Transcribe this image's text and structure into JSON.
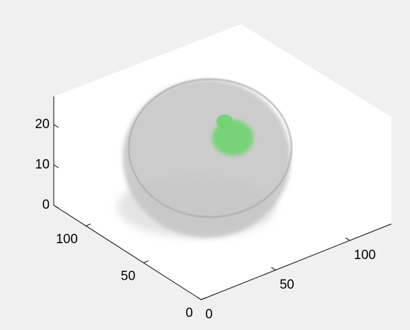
{
  "chart_data": {
    "type": "volume3d",
    "xlim": [
      0,
      128
    ],
    "xticks": [
      0,
      50,
      100
    ],
    "ylim": [
      0,
      128
    ],
    "yticks": [
      0,
      50,
      100
    ],
    "zlim": [
      0,
      27
    ],
    "zticks": [
      0,
      10,
      20
    ]
  }
}
